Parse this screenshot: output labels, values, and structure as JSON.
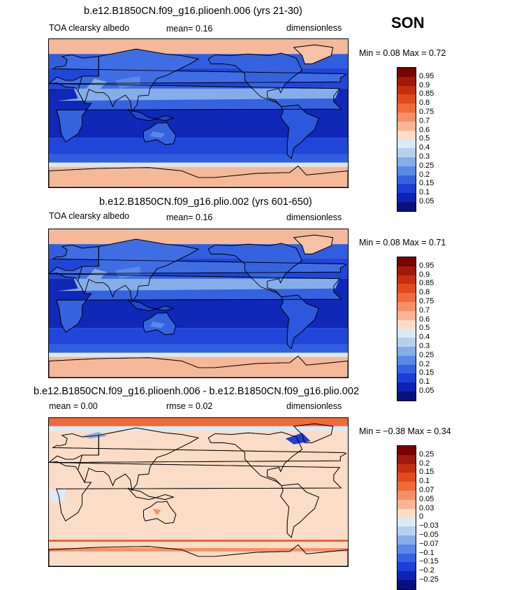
{
  "season": "SON",
  "panels": [
    {
      "title": "b.e12.B1850CN.f09_g16.plioenh.006 (yrs 21-30)",
      "left_label": "TOA clearsky albedo",
      "mid_label": "mean=   0.16",
      "right_label": "dimensionless",
      "minmax": "Min =    0.08  Max =    0.72",
      "kind": "abs"
    },
    {
      "title": "b.e12.B1850CN.f09_g16.plio.002 (yrs 601-650)",
      "left_label": "TOA clearsky albedo",
      "mid_label": "mean=   0.16",
      "right_label": "dimensionless",
      "minmax": "Min =    0.08  Max =    0.71",
      "kind": "abs"
    },
    {
      "title": "b.e12.B1850CN.f09_g16.plioenh.006 - b.e12.B1850CN.f09_g16.plio.002",
      "left_label": "mean =    0.00",
      "mid_label": "rmse =    0.02",
      "right_label": "dimensionless",
      "minmax": "Min =   −0.38  Max =    0.34",
      "kind": "diff"
    }
  ],
  "colorbar_abs": {
    "labels": [
      "0.95",
      "0.9",
      "0.85",
      "0.8",
      "0.75",
      "0.7",
      "0.6",
      "0.5",
      "0.4",
      "0.3",
      "0.25",
      "0.2",
      "0.15",
      "0.1",
      "0.05"
    ],
    "colors": [
      "#7a0000",
      "#a01a0a",
      "#c4300f",
      "#e04a1d",
      "#f06a3a",
      "#f59066",
      "#f9b595",
      "#fbdcc6",
      "#dbeaf6",
      "#b6d1ef",
      "#86ade8",
      "#5a88e6",
      "#3563e0",
      "#1d3fd6",
      "#0f22b8",
      "#08107e"
    ]
  },
  "colorbar_diff": {
    "labels": [
      "0.25",
      "0.2",
      "0.15",
      "0.1",
      "0.07",
      "0.05",
      "0.03",
      "0",
      "−0.03",
      "−0.05",
      "−0.07",
      "−0.1",
      "−0.15",
      "−0.2",
      "−0.25"
    ],
    "colors": [
      "#7a0000",
      "#a01a0a",
      "#c4300f",
      "#e04a1d",
      "#f06a3a",
      "#f59066",
      "#f9b595",
      "#fbdcc6",
      "#dbeaf6",
      "#b6d1ef",
      "#86ade8",
      "#5a88e6",
      "#3563e0",
      "#1d3fd6",
      "#0f22b8",
      "#08107e"
    ]
  }
}
